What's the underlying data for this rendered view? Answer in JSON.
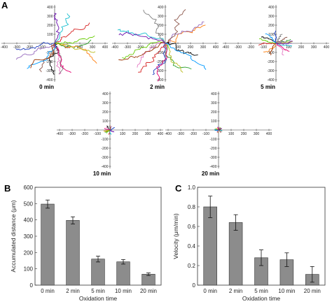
{
  "panels": {
    "a": "A",
    "b": "B",
    "c": "C"
  },
  "tracks": [
    {
      "label": "0 min",
      "spread": 0.9
    },
    {
      "label": "2 min",
      "spread": 1.0
    },
    {
      "label": "5 min",
      "spread": 0.35
    },
    {
      "label": "10 min",
      "spread": 0.12
    },
    {
      "label": "20 min",
      "spread": 0.08
    }
  ],
  "track_axis": {
    "x_ticks": [
      "-400",
      "-300",
      "-200",
      "-100",
      "100",
      "200",
      "300",
      "400"
    ],
    "y_ticks": [
      "400",
      "300",
      "200",
      "100",
      "-100",
      "-200",
      "-300",
      "-400"
    ]
  },
  "track_colors": [
    "#1f3fbf",
    "#d62020",
    "#2ca02c",
    "#ff7f0e",
    "#9467bd",
    "#e377c2",
    "#17becf",
    "#8c564b",
    "#bcbd22",
    "#000000",
    "#7f7f7f",
    "#e60073",
    "#0099ff",
    "#66cc00",
    "#993300",
    "#6a0dad"
  ],
  "chart_data": [
    {
      "type": "bar",
      "panel": "B",
      "categories": [
        "0 min",
        "2 min",
        "5 min",
        "10 min",
        "20 min"
      ],
      "values": [
        497,
        397,
        160,
        143,
        67
      ],
      "errors": [
        25,
        22,
        18,
        14,
        8
      ],
      "xlabel": "Oxidation time",
      "ylabel": "Accumulated distance (μm)",
      "ylim": [
        0,
        600
      ],
      "yticks": [
        "0",
        "100",
        "200",
        "300",
        "400",
        "500",
        "600"
      ],
      "bar_color": "#8c8c8c"
    },
    {
      "type": "bar",
      "panel": "C",
      "categories": [
        "0 min",
        "2 min",
        "5 min",
        "10 min",
        "20 min"
      ],
      "values": [
        0.8,
        0.64,
        0.28,
        0.26,
        0.11
      ],
      "errors": [
        0.11,
        0.08,
        0.08,
        0.07,
        0.08
      ],
      "xlabel": "Oxidation time",
      "ylabel": "Velocity (μm/min)",
      "ylim": [
        0,
        1.0
      ],
      "yticks": [
        "0",
        "0.2",
        "0.4",
        "0.6",
        "0.8",
        "1.0"
      ],
      "bar_color": "#8c8c8c"
    }
  ]
}
